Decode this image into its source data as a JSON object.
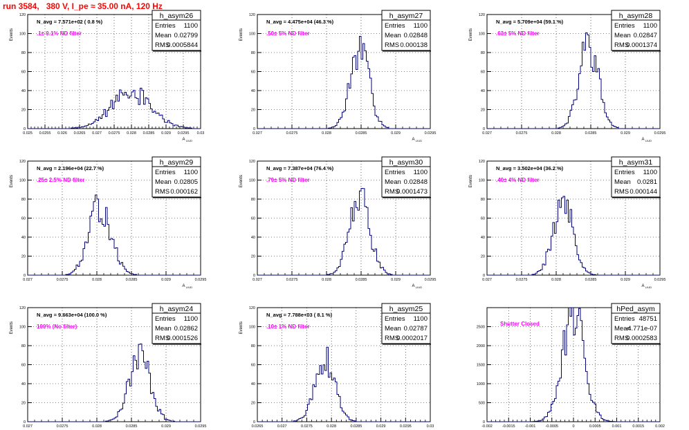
{
  "page": {
    "title": "run 3584,   380 V, I_pe ≈ 35.00 nA, 120 Hz",
    "colors": {
      "title": "#ff0000",
      "histogram": "#00007a",
      "annotation": "#ff00ff",
      "frame": "#000000"
    }
  },
  "chart_data": [
    {
      "type": "histogram",
      "name": "h_asym26",
      "stats": {
        "entries_label": "Entries",
        "entries": "1100",
        "mean_label": "Mean",
        "mean": "0.02799",
        "rms_label": "RMS",
        "rms": "0.0005844"
      },
      "navg_text": "N_avg = 7.571e+02 ( 0.8 %)",
      "filter_text": ".1± 0.1% ND filter",
      "xlabel": "A_LIUD",
      "ylabel": "Events",
      "xlim": [
        0.025,
        0.03
      ],
      "ylim": [
        0,
        120
      ],
      "xticks": [
        "0.025",
        "0.0255",
        "0.026",
        "0.0265",
        "0.027",
        "0.0275",
        "0.028",
        "0.0285",
        "0.029",
        "0.0295",
        "0.03"
      ],
      "yticks": [
        "0",
        "20",
        "40",
        "60",
        "80",
        "100",
        "120"
      ],
      "gauss": {
        "mean": 0.02799,
        "sigma": 0.00058,
        "peak": 38,
        "seed": 3
      }
    },
    {
      "type": "histogram",
      "name": "h_asym27",
      "stats": {
        "entries_label": "Entries",
        "entries": "1100",
        "mean_label": "Mean",
        "mean": "0.02848",
        "rms_label": "RMS",
        "rms": "0.000138"
      },
      "navg_text": "N_avg = 4.475e+04 (46.3 %)",
      "filter_text": ".50± 5% ND filter",
      "xlabel": "A_LIUD",
      "ylabel": "Events",
      "xlim": [
        0.027,
        0.0295
      ],
      "ylim": [
        0,
        120
      ],
      "xticks": [
        "0.027",
        "0.0275",
        "0.028",
        "0.0285",
        "0.029",
        "0.0295"
      ],
      "yticks": [
        "0",
        "20",
        "40",
        "60",
        "80",
        "100",
        "120"
      ],
      "gauss": {
        "mean": 0.02848,
        "sigma": 0.000138,
        "peak": 82,
        "seed": 7
      }
    },
    {
      "type": "histogram",
      "name": "h_asym28",
      "stats": {
        "entries_label": "Entries",
        "entries": "1100",
        "mean_label": "Mean",
        "mean": "0.02847",
        "rms_label": "RMS",
        "rms": "0.0001374"
      },
      "navg_text": "N_avg = 5.709e+04 (59.1 %)",
      "filter_text": ".63± 5% ND filter",
      "xlabel": "A_LIUD",
      "ylabel": "Events",
      "xlim": [
        0.027,
        0.0295
      ],
      "ylim": [
        0,
        120
      ],
      "xticks": [
        "0.027",
        "0.0275",
        "0.028",
        "0.0285",
        "0.029",
        "0.0295"
      ],
      "yticks": [
        "0",
        "20",
        "40",
        "60",
        "80",
        "100",
        "120"
      ],
      "gauss": {
        "mean": 0.02847,
        "sigma": 0.000137,
        "peak": 90,
        "seed": 11
      }
    },
    {
      "type": "histogram",
      "name": "h_asym29",
      "stats": {
        "entries_label": "Entries",
        "entries": "1100",
        "mean_label": "Mean",
        "mean": "0.02805",
        "rms_label": "RMS",
        "rms": "0.000162"
      },
      "navg_text": "N_avg = 2.196e+04 (22.7 %)",
      "filter_text": ".25± 2.5% ND filter",
      "xlabel": "A_LIUD",
      "ylabel": "Events",
      "xlim": [
        0.027,
        0.0295
      ],
      "ylim": [
        0,
        120
      ],
      "xticks": [
        "0.027",
        "0.0275",
        "0.028",
        "0.0285",
        "0.029",
        "0.0295"
      ],
      "yticks": [
        "0",
        "20",
        "40",
        "60",
        "80",
        "100",
        "120"
      ],
      "gauss": {
        "mean": 0.02805,
        "sigma": 0.000162,
        "peak": 72,
        "seed": 13
      }
    },
    {
      "type": "histogram",
      "name": "h_asym30",
      "stats": {
        "entries_label": "Entries",
        "entries": "1100",
        "mean_label": "Mean",
        "mean": "0.02848",
        "rms_label": "RMS",
        "rms": "0.0001473"
      },
      "navg_text": "N_avg = 7.387e+04 (76.4 %)",
      "filter_text": ".79± 5% ND filter",
      "xlabel": "A_LIUD",
      "ylabel": "Events",
      "xlim": [
        0.027,
        0.0295
      ],
      "ylim": [
        0,
        120
      ],
      "xticks": [
        "0.027",
        "0.0275",
        "0.028",
        "0.0285",
        "0.029",
        "0.0295"
      ],
      "yticks": [
        "0",
        "20",
        "40",
        "60",
        "80",
        "100",
        "120"
      ],
      "gauss": {
        "mean": 0.02848,
        "sigma": 0.000147,
        "peak": 82,
        "seed": 17
      }
    },
    {
      "type": "histogram",
      "name": "h_asym31",
      "stats": {
        "entries_label": "Entries",
        "entries": "1100",
        "mean_label": "Mean",
        "mean": "0.0281",
        "rms_label": "RMS",
        "rms": "0.000144"
      },
      "navg_text": "N_avg = 3.502e+04 (36.2 %)",
      "filter_text": ".40± 4% ND filter",
      "xlabel": "A_LIUD",
      "ylabel": "Events",
      "xlim": [
        0.027,
        0.0295
      ],
      "ylim": [
        0,
        120
      ],
      "xticks": [
        "0.027",
        "0.0275",
        "0.028",
        "0.0285",
        "0.029",
        "0.0295"
      ],
      "yticks": [
        "0",
        "20",
        "40",
        "60",
        "80",
        "100",
        "120"
      ],
      "gauss": {
        "mean": 0.0281,
        "sigma": 0.000144,
        "peak": 76,
        "seed": 19
      }
    },
    {
      "type": "histogram",
      "name": "h_asym24",
      "stats": {
        "entries_label": "Entries",
        "entries": "1100",
        "mean_label": "Mean",
        "mean": "0.02862",
        "rms_label": "RMS",
        "rms": "0.0001526"
      },
      "navg_text": "N_avg = 9.663e+04 (100.0 %)",
      "filter_text": "100% (No filter)",
      "xlabel": "A_LIUD",
      "ylabel": "Events",
      "xlim": [
        0.027,
        0.0295
      ],
      "ylim": [
        0,
        120
      ],
      "xticks": [
        "0.027",
        "0.0275",
        "0.028",
        "0.0285",
        "0.029",
        "0.0295"
      ],
      "yticks": [
        "0",
        "20",
        "40",
        "60",
        "80",
        "100",
        "120"
      ],
      "gauss": {
        "mean": 0.02862,
        "sigma": 0.000153,
        "peak": 70,
        "seed": 23
      }
    },
    {
      "type": "histogram",
      "name": "h_asym25",
      "stats": {
        "entries_label": "Entries",
        "entries": "1100",
        "mean_label": "Mean",
        "mean": "0.02787",
        "rms_label": "RMS",
        "rms": "0.0002017"
      },
      "navg_text": "N_avg = 7.788e+03 ( 8.1 %)",
      "filter_text": ".10± 1% ND filter",
      "xlabel": "A_LIUD",
      "ylabel": "Events",
      "xlim": [
        0.0265,
        0.03
      ],
      "ylim": [
        0,
        120
      ],
      "xticks": [
        "0.0265",
        "0.027",
        "0.0275",
        "0.028",
        "0.0285",
        "0.029",
        "0.0295",
        "0.03"
      ],
      "yticks": [
        "0",
        "20",
        "40",
        "60",
        "80",
        "100",
        "120"
      ],
      "gauss": {
        "mean": 0.02787,
        "sigma": 0.000202,
        "peak": 64,
        "seed": 29
      }
    },
    {
      "type": "histogram",
      "name": "hPed_asym",
      "stats": {
        "entries_label": "Entries",
        "entries": "48751",
        "mean_label": "Mean",
        "mean": "-4.771e-07",
        "rms_label": "RMS",
        "rms": "0.0002583"
      },
      "navg_text": "",
      "filter_text": "Shutter Closed",
      "xlabel": "",
      "ylabel": "",
      "xlim": [
        -0.002,
        0.002
      ],
      "ylim": [
        0,
        3000
      ],
      "xticks": [
        "-0.002",
        "-0.0015",
        "-0.001",
        "-0.0005",
        "0",
        "0.0005",
        "0.001",
        "0.0015",
        "0.002"
      ],
      "yticks": [
        "0",
        "500",
        "1000",
        "1500",
        "2000",
        "2500"
      ],
      "gauss": {
        "mean": 0.0,
        "sigma": 0.000258,
        "peak": 2780,
        "seed": 31
      }
    }
  ]
}
